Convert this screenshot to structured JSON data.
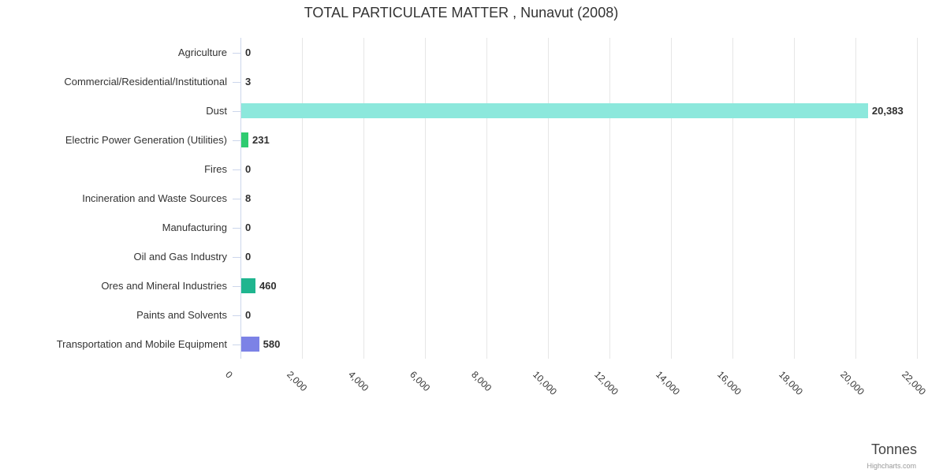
{
  "chart_data": {
    "type": "bar",
    "orientation": "horizontal",
    "title": "TOTAL PARTICULATE MATTER , Nunavut (2008)",
    "categories": [
      "Agriculture",
      "Commercial/Residential/Institutional",
      "Dust",
      "Electric Power Generation (Utilities)",
      "Fires",
      "Incineration and Waste Sources",
      "Manufacturing",
      "Oil and Gas Industry",
      "Ores and Mineral Industries",
      "Paints and Solvents",
      "Transportation and Mobile Equipment"
    ],
    "values": [
      0,
      3,
      20383,
      231,
      0,
      8,
      0,
      0,
      460,
      0,
      580
    ],
    "value_labels": [
      "0",
      "3",
      "20,383",
      "231",
      "0",
      "8",
      "0",
      "0",
      "460",
      "0",
      "580"
    ],
    "bar_colors": [
      "none",
      "none",
      "#8ce8dc",
      "#2ecb70",
      "none",
      "none",
      "none",
      "none",
      "#1fb58f",
      "none",
      "#7c82e6"
    ],
    "xlabel": "Tonnes",
    "ylabel": "",
    "xlim": [
      0,
      22000
    ],
    "x_tick_interval": 2000,
    "x_tick_labels": [
      "0",
      "2,000",
      "4,000",
      "6,000",
      "8,000",
      "10,000",
      "12,000",
      "14,000",
      "16,000",
      "18,000",
      "20,000",
      "22,000"
    ],
    "x_tick_label_rotation": 45,
    "grid": "vertical-only",
    "legend": "none",
    "credit": "Highcharts.com",
    "colors": {
      "grid_line": "#e6e6e6",
      "axis_line": "#ccd6eb",
      "category_text": "#333333",
      "value_text": "#2f2f2f",
      "title_text": "#333333",
      "axis_title_text": "#444444",
      "credit_text": "#999999"
    }
  }
}
